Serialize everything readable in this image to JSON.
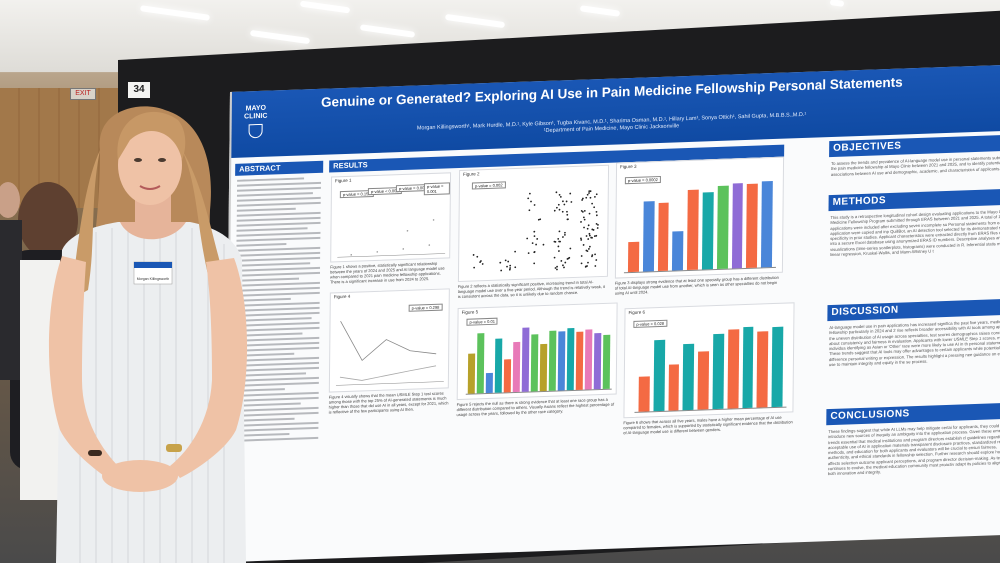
{
  "board": {
    "number": "34"
  },
  "exit_sign": "EXIT",
  "poster": {
    "logo": "MAYO CLINIC",
    "title": "Genuine or Generated? Exploring AI Use in Pain Medicine Fellowship Personal Statements",
    "authors": "Morgan Killingsworth¹, Mark Hurdle, M.D.¹, Kyle Gibson¹, Tugba Kivanc, M.D.¹, Sharima Osman, M.D.¹, Hillary Lam¹, Sonya Ottich¹, Sahil Gupta, M.B.B.S.,M.D.¹",
    "affiliation": "¹Department of Pain Medicine, Mayo Clinic Jacksonville",
    "sections": {
      "abstract": "ABSTRACT",
      "results": "RESULTS",
      "objectives": "OBJECTIVES",
      "methods": "METHODS",
      "discussion": "DISCUSSION",
      "conclusions": "CONCLUSIONS"
    },
    "objectives_text": "To assess the trends and prevalence of AI-language model use in personal statements submitted to the pain medicine fellowship at Mayo Clinic between 2021 and 2025, and to identify potential associations between AI use and demographic, academic, and characteristics of applicants.",
    "methods_text": "This study is a retrospective longitudinal cohort design evaluating applications to the Mayo Clinic Pain Medicine Fellowship Program submitted through ERAS between 2021 and 2025. A total of 1,2 applications were included after excluding seven incomplete su Personal statements from each application were copied and inp QuillBot, an AI detection tool selected for its demonstrated sens specificity in prior studies. Applicant characteristics were extracted directly from ERAS files compiled into a secure Excel database using anonymized ERAS ID numbers. Descriptive analyses and visualizations (time-series scatterplots, histograms) were conducted in R. Inferential statis multiple linear regression, Kruskal-Wallis, and Mann-Whitney U t",
    "discussion_text": "AI-language model use in pain applications has increased significa the past five years, medicine fellowship particularly in 2024 and 2 rise reflects broader accessibility with AI tools among applicants. the uneven distribution of AI usage across specialties, test scores demographics raises concerns about consistency and fairness in evaluation. Applicants with lower USMLE Step 1 scores, males, and individua identifying as Asian or 'Other' race were more likely to use AI in th personal statements. These trends suggest that AI tools may offer advantages to certain applicants while potentially hiding difference personal writing or expression. The results highlight a pressing nee guidance on ethical AI use to maintain integrity and equity in the se process.",
    "conclusions_text": "These findings suggest that while AI LLMs may help mitigate certai for applicants, they could also introduce new sources of inequity an ambiguity into the application process. Given these emerging trends essential that medical institutions and program directors establish cl guidelines regarding the acceptable use of AI in application materials transparent disclosure practices, standardized review methods, and education for both applicants and evaluators will be crucial to ensuri fairness, authenticity, and ethical standards in fellowship selection. Further research should explore how AI use affects selection outcome applicant perceptions, and program director decision-making. As tec continues to evolve, the medical education community must proactiv adapt its policies to align with both innovation and integrity.",
    "figures": {
      "f1": {
        "label": "Figure 1",
        "pvals": [
          "p-value = 0.154",
          "p-value < 0.001",
          "p-value = 0.001",
          "p-value = 0.001"
        ],
        "caption": "Figure 1 shows a positive, statistically significant relationship between the years of 2024 and 2025 and AI language model use when compared to 2021 pain medicine fellowship applications. There is a significant increase in use from 2024 to 2025."
      },
      "f2": {
        "label": "Figure 2",
        "pval": "p-value = 0.002",
        "caption": "Figure 2 reflects a statistically significant positive, increasing trend in total AI-language model use over a five-year period. Although the trend is relatively weak, it is consistent across the data, so it is unlikely due to random chance."
      },
      "f3": {
        "label": "Figure 3",
        "pval": "p-value = 0.0002",
        "caption": "Figure 3 displays strong evidence that at least one specialty group has a different distribution of total AI-language model use from another, which is seen as other specialties do not begin using AI until 2024."
      },
      "f4": {
        "label": "Figure 4",
        "pval": "p-value = 0.298",
        "caption": "Figure 4 visually shows that the mean USMLE Step 1 test scores among those with the top 25% of AI-generated statements is much higher than those that did use AI in all years, except for 2021, which is reflective of the few participants using AI then."
      },
      "f5": {
        "label": "Figure 5",
        "pval": "p-value = 0.01",
        "caption": "Figure 5 rejects the null as there is strong evidence that at least one race group has a different distribution compared to others. Visually Asians reflect the highest percentage of usage across the years, followed by the other race category."
      },
      "f6": {
        "label": "Figure 6",
        "pval": "p-value = 0.028",
        "caption": "Figure 6 shows that across all five years, males have a higher mean percentage of AI use compared to females, which is supported by statistically significant evidence that the distribution of AI-language model use is different between genders."
      }
    },
    "colors": {
      "header": "#1a57b5",
      "orange": "#f46a43",
      "blue": "#4a86d9",
      "teal": "#18a8a8",
      "green": "#5cc25c",
      "pink": "#e87ab8",
      "purple": "#8f6cd6",
      "olive": "#b7a12a"
    }
  },
  "person": {
    "badge": "Morgan Killingsworth"
  }
}
